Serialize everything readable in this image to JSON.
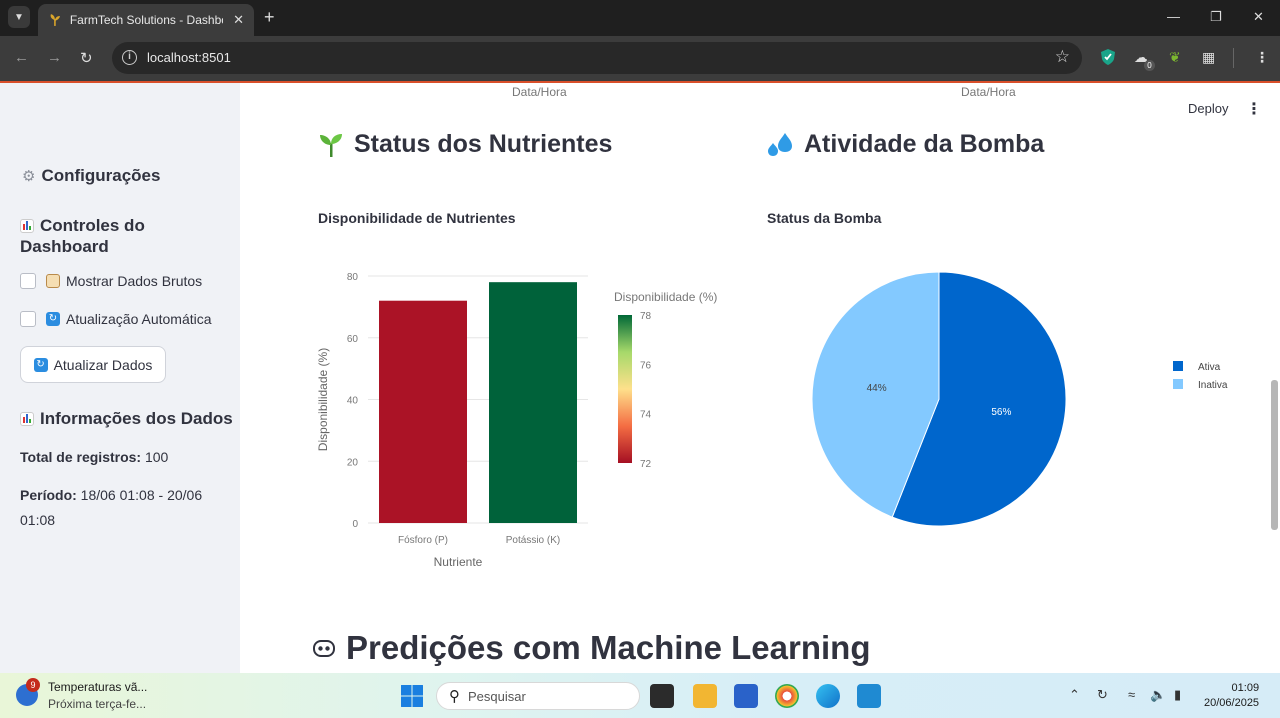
{
  "browser": {
    "tab_title": "FarmTech Solutions - Dashboard",
    "url": "localhost:8501",
    "extension_badge": "0"
  },
  "header": {
    "deploy_label": "Deploy"
  },
  "top_axes": {
    "left_xlabel": "Data/Hora",
    "right_xlabel": "Data/Hora"
  },
  "sidebar": {
    "config_title": "Configurações",
    "controls_title_line1": "Controles do",
    "controls_title_line2": "Dashboard",
    "show_raw_label": "Mostrar Dados Brutos",
    "auto_update_label": "Atualização Automática",
    "refresh_button_label": "Atualizar Dados",
    "info_title": "Informações dos Dados",
    "total_label": "Total de registros:",
    "total_value": "100",
    "period_label": "Período:",
    "period_value_line1": "18/06 01:08 - 20/06",
    "period_value_line2": "01:08"
  },
  "sections": {
    "nutrients_title": "Status dos Nutrientes",
    "pump_title": "Atividade da Bomba",
    "ml_title": "Predições com Machine Learning"
  },
  "chart_data": [
    {
      "type": "bar",
      "title": "Disponibilidade de Nutrientes",
      "xlabel": "Nutriente",
      "ylabel": "Disponibilidade (%)",
      "categories": [
        "Fósforo (P)",
        "Potássio (K)"
      ],
      "values": [
        72,
        78
      ],
      "ylim": [
        0,
        80
      ],
      "yticks": [
        "0",
        "20",
        "40",
        "60",
        "80"
      ],
      "colorbar": {
        "title": "Disponibilidade (%)",
        "ticks": [
          "72",
          "74",
          "76",
          "78"
        ],
        "range": [
          72,
          78
        ],
        "colors": [
          "#a50f23",
          "#f46d43",
          "#fee08b",
          "#a6d96a",
          "#006837"
        ]
      },
      "bar_colors": [
        "#ab1326",
        "#00623a"
      ],
      "grid": true
    },
    {
      "type": "pie",
      "title": "Status da Bomba",
      "labels": [
        "Ativa",
        "Inativa"
      ],
      "values": [
        56,
        44
      ],
      "value_labels": [
        "56%",
        "44%"
      ],
      "colors": [
        "#0066cc",
        "#83c9ff"
      ],
      "legend": "top-right"
    }
  ],
  "taskbar": {
    "weather_title": "Temperaturas vã...",
    "weather_sub": "Próxima terça-fe...",
    "weather_badge": "9",
    "search_placeholder": "Pesquisar",
    "time": "01:09",
    "date": "20/06/2025"
  }
}
